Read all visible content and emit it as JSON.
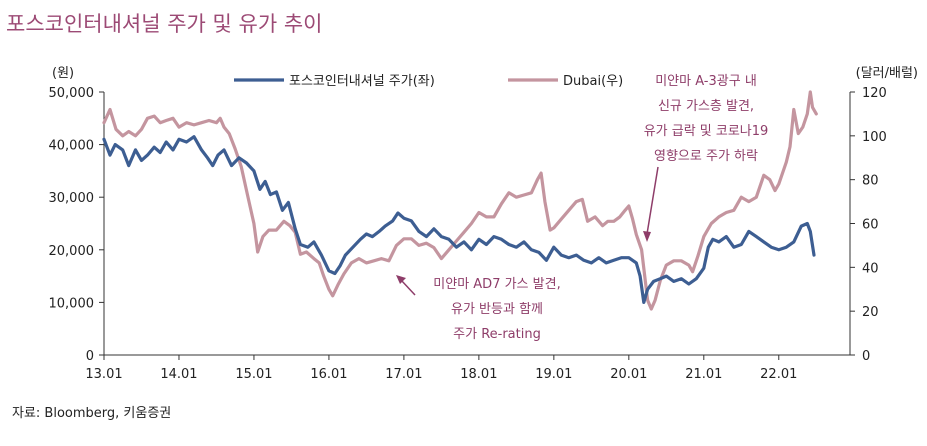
{
  "chart_data": {
    "type": "line",
    "title": "포스코인터내셔널 주가 및 유가 추이",
    "source": "자료: Bloomberg, 키움증권",
    "left_axis": {
      "unit": "(원)",
      "min": 0,
      "max": 50000,
      "ticks": [
        "0",
        "10,000",
        "20,000",
        "30,000",
        "40,000",
        "50,000"
      ]
    },
    "right_axis": {
      "unit": "(달러/배럴)",
      "min": 0,
      "max": 120,
      "ticks": [
        "0",
        "20",
        "40",
        "60",
        "80",
        "100",
        "120"
      ]
    },
    "x_range": [
      2013.0,
      2022.95
    ],
    "x_ticks": [
      {
        "x": 2013,
        "label": "13.01"
      },
      {
        "x": 2014,
        "label": "14.01"
      },
      {
        "x": 2015,
        "label": "15.01"
      },
      {
        "x": 2016,
        "label": "16.01"
      },
      {
        "x": 2017,
        "label": "17.01"
      },
      {
        "x": 2018,
        "label": "18.01"
      },
      {
        "x": 2019,
        "label": "19.01"
      },
      {
        "x": 2020,
        "label": "20.01"
      },
      {
        "x": 2021,
        "label": "21.01"
      },
      {
        "x": 2022,
        "label": "22.01"
      }
    ],
    "series": [
      {
        "name": "포스코인터내셔널 주가(좌)",
        "axis": "left",
        "color": "#3d5e92",
        "points": [
          [
            2013.0,
            41000
          ],
          [
            2013.08,
            38000
          ],
          [
            2013.15,
            40000
          ],
          [
            2013.25,
            39000
          ],
          [
            2013.33,
            36000
          ],
          [
            2013.42,
            39000
          ],
          [
            2013.5,
            37000
          ],
          [
            2013.58,
            38000
          ],
          [
            2013.67,
            39500
          ],
          [
            2013.75,
            38500
          ],
          [
            2013.83,
            40500
          ],
          [
            2013.92,
            39000
          ],
          [
            2014.0,
            41000
          ],
          [
            2014.1,
            40500
          ],
          [
            2014.2,
            41500
          ],
          [
            2014.3,
            39000
          ],
          [
            2014.38,
            37500
          ],
          [
            2014.45,
            36000
          ],
          [
            2014.52,
            38000
          ],
          [
            2014.6,
            39000
          ],
          [
            2014.7,
            36000
          ],
          [
            2014.8,
            37500
          ],
          [
            2014.9,
            36500
          ],
          [
            2015.0,
            35000
          ],
          [
            2015.08,
            31500
          ],
          [
            2015.15,
            33000
          ],
          [
            2015.22,
            30500
          ],
          [
            2015.3,
            31000
          ],
          [
            2015.38,
            27500
          ],
          [
            2015.46,
            29000
          ],
          [
            2015.55,
            24000
          ],
          [
            2015.62,
            21000
          ],
          [
            2015.72,
            20500
          ],
          [
            2015.8,
            21500
          ],
          [
            2015.9,
            19000
          ],
          [
            2016.0,
            16000
          ],
          [
            2016.08,
            15500
          ],
          [
            2016.15,
            17000
          ],
          [
            2016.22,
            19000
          ],
          [
            2016.32,
            20500
          ],
          [
            2016.42,
            22000
          ],
          [
            2016.5,
            23000
          ],
          [
            2016.58,
            22500
          ],
          [
            2016.67,
            23500
          ],
          [
            2016.75,
            24500
          ],
          [
            2016.85,
            25500
          ],
          [
            2016.92,
            27000
          ],
          [
            2017.0,
            26000
          ],
          [
            2017.1,
            25500
          ],
          [
            2017.2,
            23500
          ],
          [
            2017.3,
            22500
          ],
          [
            2017.4,
            24000
          ],
          [
            2017.5,
            22500
          ],
          [
            2017.6,
            22000
          ],
          [
            2017.7,
            20500
          ],
          [
            2017.8,
            21500
          ],
          [
            2017.9,
            20000
          ],
          [
            2018.0,
            22000
          ],
          [
            2018.1,
            21000
          ],
          [
            2018.2,
            22500
          ],
          [
            2018.3,
            22000
          ],
          [
            2018.4,
            21000
          ],
          [
            2018.5,
            20500
          ],
          [
            2018.6,
            21500
          ],
          [
            2018.7,
            20000
          ],
          [
            2018.8,
            19500
          ],
          [
            2018.9,
            18000
          ],
          [
            2019.0,
            20500
          ],
          [
            2019.1,
            19000
          ],
          [
            2019.2,
            18500
          ],
          [
            2019.3,
            19000
          ],
          [
            2019.4,
            18000
          ],
          [
            2019.5,
            17500
          ],
          [
            2019.6,
            18500
          ],
          [
            2019.7,
            17500
          ],
          [
            2019.8,
            18000
          ],
          [
            2019.9,
            18500
          ],
          [
            2020.0,
            18500
          ],
          [
            2020.1,
            17500
          ],
          [
            2020.15,
            15000
          ],
          [
            2020.2,
            10000
          ],
          [
            2020.25,
            12500
          ],
          [
            2020.33,
            14000
          ],
          [
            2020.42,
            14500
          ],
          [
            2020.5,
            15000
          ],
          [
            2020.6,
            14000
          ],
          [
            2020.7,
            14500
          ],
          [
            2020.8,
            13500
          ],
          [
            2020.9,
            14500
          ],
          [
            2021.0,
            16500
          ],
          [
            2021.06,
            20500
          ],
          [
            2021.12,
            22000
          ],
          [
            2021.2,
            21500
          ],
          [
            2021.3,
            22500
          ],
          [
            2021.4,
            20500
          ],
          [
            2021.5,
            21000
          ],
          [
            2021.6,
            23500
          ],
          [
            2021.7,
            22500
          ],
          [
            2021.8,
            21500
          ],
          [
            2021.9,
            20500
          ],
          [
            2022.0,
            20000
          ],
          [
            2022.1,
            20500
          ],
          [
            2022.2,
            21500
          ],
          [
            2022.3,
            24500
          ],
          [
            2022.38,
            25000
          ],
          [
            2022.42,
            23500
          ],
          [
            2022.47,
            19000
          ]
        ]
      },
      {
        "name": "Dubai(우)",
        "axis": "right",
        "color": "#c4959f",
        "points": [
          [
            2013.0,
            106
          ],
          [
            2013.08,
            112
          ],
          [
            2013.16,
            103
          ],
          [
            2013.25,
            100
          ],
          [
            2013.33,
            102
          ],
          [
            2013.42,
            100
          ],
          [
            2013.5,
            103
          ],
          [
            2013.58,
            108
          ],
          [
            2013.67,
            109
          ],
          [
            2013.75,
            106
          ],
          [
            2013.83,
            107
          ],
          [
            2013.92,
            108
          ],
          [
            2014.0,
            104
          ],
          [
            2014.1,
            106
          ],
          [
            2014.2,
            105
          ],
          [
            2014.3,
            106
          ],
          [
            2014.4,
            107
          ],
          [
            2014.5,
            106
          ],
          [
            2014.55,
            108
          ],
          [
            2014.6,
            104
          ],
          [
            2014.67,
            101
          ],
          [
            2014.75,
            94
          ],
          [
            2014.83,
            86
          ],
          [
            2014.92,
            72
          ],
          [
            2015.0,
            60
          ],
          [
            2015.05,
            47
          ],
          [
            2015.12,
            54
          ],
          [
            2015.2,
            57
          ],
          [
            2015.3,
            57
          ],
          [
            2015.4,
            61
          ],
          [
            2015.48,
            59
          ],
          [
            2015.55,
            56
          ],
          [
            2015.62,
            46
          ],
          [
            2015.7,
            47
          ],
          [
            2015.8,
            44
          ],
          [
            2015.87,
            42
          ],
          [
            2015.93,
            36
          ],
          [
            2016.0,
            30
          ],
          [
            2016.05,
            27
          ],
          [
            2016.12,
            32
          ],
          [
            2016.2,
            37
          ],
          [
            2016.3,
            42
          ],
          [
            2016.4,
            44
          ],
          [
            2016.5,
            42
          ],
          [
            2016.6,
            43
          ],
          [
            2016.7,
            44
          ],
          [
            2016.8,
            43
          ],
          [
            2016.9,
            50
          ],
          [
            2017.0,
            53
          ],
          [
            2017.1,
            53
          ],
          [
            2017.2,
            50
          ],
          [
            2017.3,
            51
          ],
          [
            2017.4,
            49
          ],
          [
            2017.5,
            44
          ],
          [
            2017.6,
            48
          ],
          [
            2017.7,
            52
          ],
          [
            2017.8,
            56
          ],
          [
            2017.9,
            60
          ],
          [
            2018.0,
            65
          ],
          [
            2018.1,
            63
          ],
          [
            2018.2,
            63
          ],
          [
            2018.3,
            69
          ],
          [
            2018.4,
            74
          ],
          [
            2018.5,
            72
          ],
          [
            2018.6,
            73
          ],
          [
            2018.7,
            74
          ],
          [
            2018.78,
            80
          ],
          [
            2018.83,
            83
          ],
          [
            2018.88,
            70
          ],
          [
            2018.95,
            57
          ],
          [
            2019.0,
            58
          ],
          [
            2019.1,
            62
          ],
          [
            2019.2,
            66
          ],
          [
            2019.3,
            70
          ],
          [
            2019.38,
            71
          ],
          [
            2019.45,
            61
          ],
          [
            2019.55,
            63
          ],
          [
            2019.65,
            59
          ],
          [
            2019.72,
            61
          ],
          [
            2019.8,
            61
          ],
          [
            2019.88,
            63
          ],
          [
            2019.95,
            66
          ],
          [
            2020.0,
            68
          ],
          [
            2020.05,
            62
          ],
          [
            2020.1,
            55
          ],
          [
            2020.17,
            48
          ],
          [
            2020.25,
            25
          ],
          [
            2020.3,
            21
          ],
          [
            2020.35,
            25
          ],
          [
            2020.42,
            34
          ],
          [
            2020.5,
            41
          ],
          [
            2020.6,
            43
          ],
          [
            2020.7,
            43
          ],
          [
            2020.8,
            41
          ],
          [
            2020.85,
            38
          ],
          [
            2020.92,
            45
          ],
          [
            2021.0,
            54
          ],
          [
            2021.1,
            60
          ],
          [
            2021.2,
            63
          ],
          [
            2021.3,
            65
          ],
          [
            2021.4,
            66
          ],
          [
            2021.5,
            72
          ],
          [
            2021.6,
            70
          ],
          [
            2021.7,
            72
          ],
          [
            2021.8,
            82
          ],
          [
            2021.88,
            80
          ],
          [
            2021.95,
            75
          ],
          [
            2022.0,
            78
          ],
          [
            2022.1,
            88
          ],
          [
            2022.15,
            95
          ],
          [
            2022.2,
            112
          ],
          [
            2022.26,
            101
          ],
          [
            2022.32,
            104
          ],
          [
            2022.38,
            110
          ],
          [
            2022.42,
            120
          ],
          [
            2022.45,
            113
          ],
          [
            2022.5,
            110
          ]
        ]
      }
    ],
    "annotations": [
      {
        "lines": [
          "미얀마 A-3광구 내",
          "신규 가스층 발견,",
          "유가 급락 및 코로나19",
          "영향으로 주가 하락"
        ]
      },
      {
        "lines": [
          "미얀마 AD7 가스 발견,",
          "유가 반등과 함께",
          "주가 Re-rating"
        ]
      }
    ]
  }
}
